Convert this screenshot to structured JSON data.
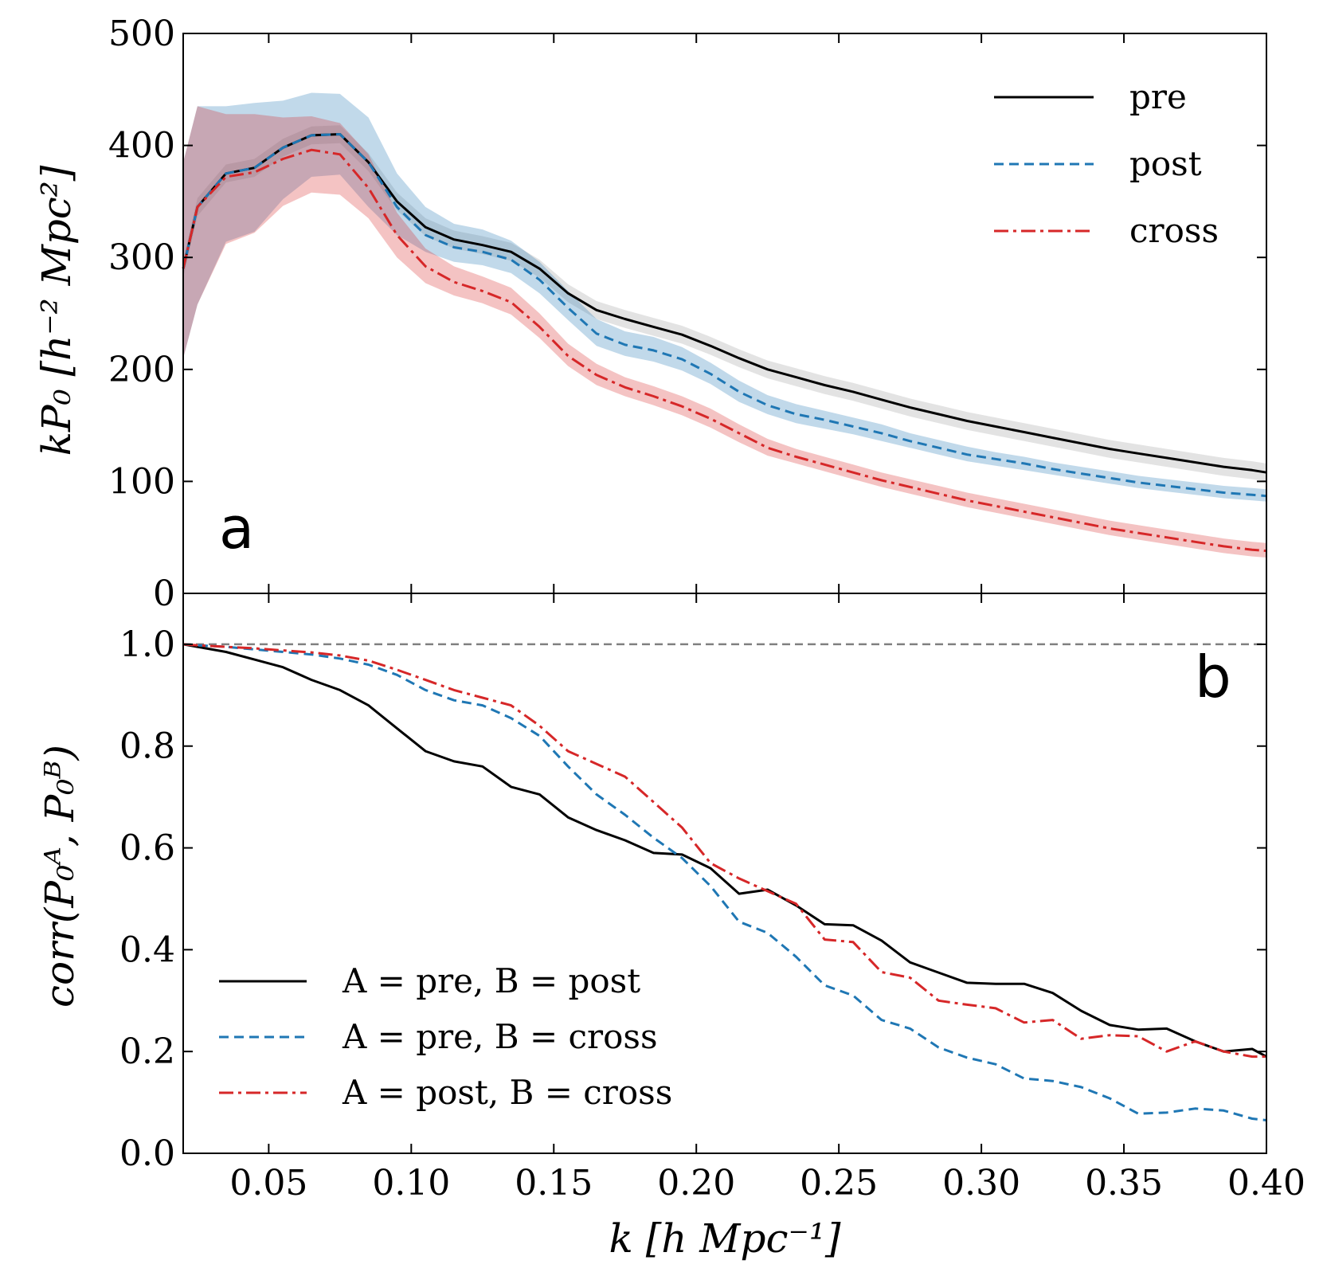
{
  "chart_data": [
    {
      "type": "line",
      "panel_label": "a",
      "xlabel": "",
      "ylabel": "kP₀ [h⁻² Mpc²]",
      "xlim": [
        0.02,
        0.4
      ],
      "ylim": [
        0,
        500
      ],
      "y_ticks": [
        0,
        100,
        200,
        300,
        400,
        500
      ],
      "x_ticks": [
        0.05,
        0.1,
        0.15,
        0.2,
        0.25,
        0.3,
        0.35,
        0.4
      ],
      "grid": false,
      "legend_position": "top-right",
      "x": [
        0.02,
        0.025,
        0.035,
        0.045,
        0.055,
        0.065,
        0.075,
        0.085,
        0.095,
        0.105,
        0.115,
        0.125,
        0.135,
        0.145,
        0.155,
        0.165,
        0.175,
        0.185,
        0.195,
        0.205,
        0.215,
        0.225,
        0.235,
        0.245,
        0.255,
        0.265,
        0.275,
        0.285,
        0.295,
        0.305,
        0.315,
        0.325,
        0.335,
        0.345,
        0.355,
        0.365,
        0.375,
        0.385,
        0.395,
        0.4
      ],
      "series": [
        {
          "name": "pre",
          "color": "#000000",
          "style": "solid",
          "values": [
            290,
            345,
            375,
            380,
            398,
            409,
            410,
            385,
            350,
            327,
            316,
            311,
            305,
            290,
            268,
            253,
            245,
            238,
            231,
            221,
            210,
            200,
            193,
            186,
            180,
            173,
            166,
            160,
            154,
            149,
            144,
            139,
            134,
            129,
            125,
            121,
            117,
            113,
            110,
            108
          ],
          "band": 8
        },
        {
          "name": "post",
          "color": "#1f77b4",
          "style": "dashed",
          "values": [
            290,
            345,
            375,
            380,
            398,
            409,
            410,
            385,
            345,
            320,
            309,
            305,
            298,
            280,
            255,
            232,
            222,
            217,
            209,
            196,
            180,
            168,
            160,
            155,
            149,
            143,
            136,
            130,
            124,
            120,
            116,
            111,
            107,
            103,
            99,
            96,
            93,
            90,
            88,
            87
          ],
          "band": 8,
          "band_low": [
            210,
            258,
            314,
            323,
            352,
            372,
            374,
            345,
            320,
            305,
            296,
            293,
            286,
            268,
            244,
            221,
            212,
            207,
            199,
            187,
            171,
            160,
            152,
            147,
            142,
            136,
            130,
            124,
            118,
            114,
            110,
            106,
            102,
            98,
            94,
            91,
            88,
            85,
            83,
            82
          ],
          "band_high": [
            385,
            435,
            435,
            438,
            440,
            447,
            446,
            425,
            375,
            345,
            330,
            325,
            315,
            296,
            270,
            245,
            234,
            229,
            220,
            206,
            190,
            177,
            169,
            163,
            157,
            151,
            143,
            137,
            131,
            126,
            122,
            117,
            113,
            109,
            105,
            102,
            99,
            96,
            94,
            93
          ]
        },
        {
          "name": "cross",
          "color": "#d62728",
          "style": "dashdot",
          "values": [
            290,
            345,
            372,
            376,
            388,
            396,
            392,
            362,
            320,
            292,
            278,
            270,
            260,
            238,
            212,
            195,
            184,
            176,
            167,
            156,
            143,
            130,
            122,
            115,
            108,
            101,
            95,
            89,
            83,
            78,
            73,
            68,
            63,
            58,
            54,
            50,
            46,
            42,
            39,
            38
          ],
          "band": 8,
          "band_low": [
            210,
            258,
            312,
            322,
            346,
            358,
            356,
            335,
            300,
            277,
            266,
            259,
            249,
            228,
            203,
            186,
            176,
            168,
            159,
            148,
            135,
            123,
            116,
            109,
            102,
            95,
            89,
            83,
            77,
            72,
            67,
            62,
            57,
            52,
            48,
            44,
            40,
            36,
            33,
            32
          ],
          "band_high": [
            385,
            435,
            428,
            428,
            425,
            426,
            420,
            392,
            340,
            308,
            292,
            283,
            273,
            250,
            223,
            205,
            193,
            185,
            176,
            165,
            151,
            138,
            129,
            122,
            115,
            108,
            102,
            96,
            90,
            85,
            80,
            75,
            70,
            65,
            61,
            57,
            53,
            49,
            46,
            45
          ]
        }
      ]
    },
    {
      "type": "line",
      "panel_label": "b",
      "xlabel": "k [h Mpc⁻¹]",
      "ylabel": "corr(P₀ᴬ, P₀ᴮ)",
      "xlim": [
        0.02,
        0.4
      ],
      "ylim": [
        0.0,
        1.1
      ],
      "y_ticks": [
        0.0,
        0.2,
        0.4,
        0.6,
        0.8,
        1.0
      ],
      "x_ticks": [
        0.05,
        0.1,
        0.15,
        0.2,
        0.25,
        0.3,
        0.35,
        0.4
      ],
      "x_tick_labels": [
        "0.05",
        "0.10",
        "0.15",
        "0.20",
        "0.25",
        "0.30",
        "0.35",
        "0.40"
      ],
      "y_tick_labels": [
        "0.0",
        "0.2",
        "0.4",
        "0.6",
        "0.8",
        "1.0"
      ],
      "reference_line": {
        "y": 1.0,
        "color": "#808080",
        "style": "dashed"
      },
      "grid": false,
      "legend_position": "bottom-left",
      "x": [
        0.02,
        0.025,
        0.035,
        0.045,
        0.055,
        0.065,
        0.075,
        0.085,
        0.095,
        0.105,
        0.115,
        0.125,
        0.135,
        0.145,
        0.155,
        0.165,
        0.175,
        0.185,
        0.195,
        0.205,
        0.215,
        0.225,
        0.235,
        0.245,
        0.255,
        0.265,
        0.275,
        0.285,
        0.295,
        0.305,
        0.315,
        0.325,
        0.335,
        0.345,
        0.355,
        0.365,
        0.375,
        0.385,
        0.395,
        0.4
      ],
      "series": [
        {
          "name": "A = pre, B = post",
          "color": "#000000",
          "style": "solid",
          "values": [
            1.0,
            0.995,
            0.985,
            0.97,
            0.955,
            0.93,
            0.91,
            0.88,
            0.835,
            0.79,
            0.77,
            0.76,
            0.72,
            0.705,
            0.66,
            0.635,
            0.615,
            0.59,
            0.587,
            0.56,
            0.51,
            0.518,
            0.487,
            0.45,
            0.448,
            0.418,
            0.375,
            0.355,
            0.335,
            0.333,
            0.333,
            0.315,
            0.28,
            0.252,
            0.243,
            0.245,
            0.22,
            0.2,
            0.205,
            0.19
          ]
        },
        {
          "name": "A = pre, B = cross",
          "color": "#1f77b4",
          "style": "dashed",
          "values": [
            1.0,
            0.998,
            0.995,
            0.99,
            0.985,
            0.98,
            0.972,
            0.96,
            0.94,
            0.91,
            0.89,
            0.88,
            0.855,
            0.82,
            0.76,
            0.705,
            0.665,
            0.62,
            0.58,
            0.525,
            0.455,
            0.433,
            0.386,
            0.33,
            0.31,
            0.262,
            0.245,
            0.208,
            0.188,
            0.175,
            0.147,
            0.142,
            0.13,
            0.108,
            0.078,
            0.08,
            0.088,
            0.084,
            0.068,
            0.065
          ]
        },
        {
          "name": "A = post, B = cross",
          "color": "#d62728",
          "style": "dashdot",
          "values": [
            1.0,
            0.998,
            0.995,
            0.992,
            0.988,
            0.984,
            0.978,
            0.968,
            0.95,
            0.93,
            0.91,
            0.895,
            0.88,
            0.84,
            0.79,
            0.765,
            0.74,
            0.69,
            0.64,
            0.57,
            0.54,
            0.515,
            0.49,
            0.42,
            0.415,
            0.356,
            0.345,
            0.3,
            0.292,
            0.285,
            0.257,
            0.262,
            0.225,
            0.232,
            0.23,
            0.2,
            0.22,
            0.2,
            0.19,
            0.19
          ]
        }
      ]
    }
  ],
  "panel_a_letter": "a",
  "panel_b_letter": "b",
  "panel_a_ylabel": "kP₀ [h⁻² Mpc²]",
  "panel_b_ylabel": "corr(P₀ᴬ, P₀ᴮ)",
  "shared_xlabel": "k [h Mpc⁻¹]",
  "legend_a": [
    "pre",
    "post",
    "cross"
  ],
  "legend_b": [
    "A = pre, B = post",
    "A = pre, B = cross",
    "A = post, B = cross"
  ]
}
